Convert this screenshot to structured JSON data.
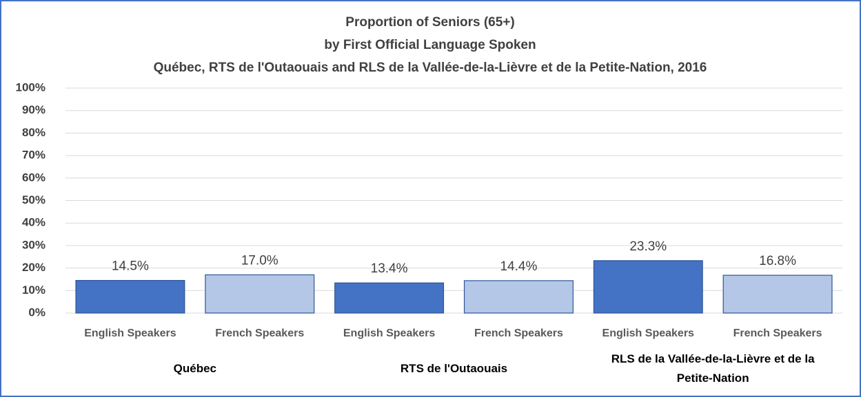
{
  "chart_data": {
    "type": "bar",
    "title": "Proportion of Seniors (65+)",
    "subtitle": [
      "by First Official Language Spoken",
      "Québec, RTS de l'Outaouais and RLS de la Vallée-de-la-Lièvre et de la Petite-Nation, 2016"
    ],
    "categories": [
      "English Speakers",
      "French Speakers",
      "English Speakers",
      "French Speakers",
      "English Speakers",
      "French Speakers"
    ],
    "groups": [
      "Québec",
      "RTS de l'Outaouais",
      "RLS de la Vallée-de-la-Lièvre et de la Petite-Nation"
    ],
    "values": [
      14.5,
      17.0,
      13.4,
      14.4,
      23.3,
      16.8
    ],
    "value_labels": [
      "14.5%",
      "17.0%",
      "13.4%",
      "14.4%",
      "23.3%",
      "16.8%"
    ],
    "colors": [
      "#4472c4",
      "#b4c7e7",
      "#4472c4",
      "#b4c7e7",
      "#4472c4",
      "#b4c7e7"
    ],
    "ylim": [
      0,
      100
    ],
    "yticks": [
      {
        "value": 0,
        "label": "0%"
      },
      {
        "value": 10,
        "label": "10%"
      },
      {
        "value": 20,
        "label": "20%"
      },
      {
        "value": 30,
        "label": "30%"
      },
      {
        "value": 40,
        "label": "40%"
      },
      {
        "value": 50,
        "label": "50%"
      },
      {
        "value": 60,
        "label": "60%"
      },
      {
        "value": 70,
        "label": "70%"
      },
      {
        "value": 80,
        "label": "80%"
      },
      {
        "value": 90,
        "label": "90%"
      },
      {
        "value": 100,
        "label": "100%"
      }
    ],
    "grid": true
  }
}
